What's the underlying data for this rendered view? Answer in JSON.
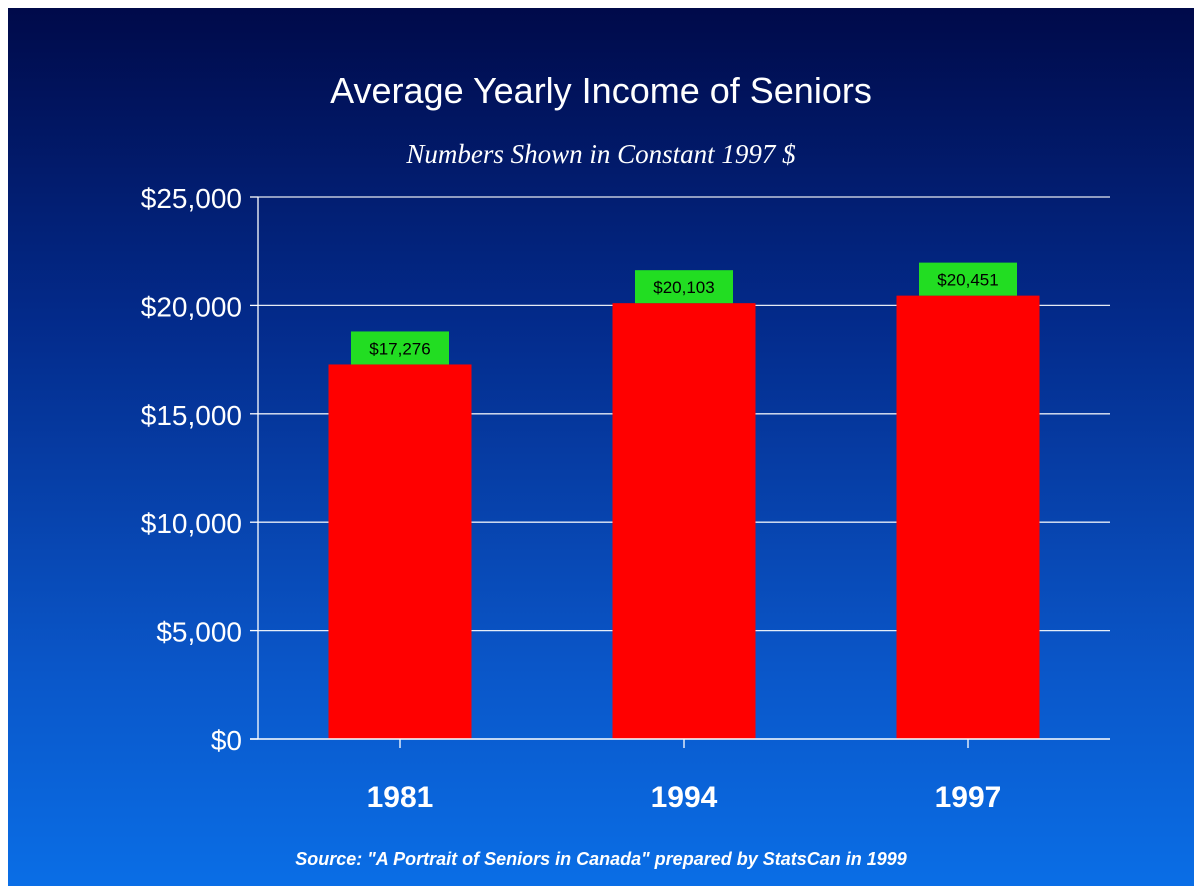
{
  "chart_data": {
    "type": "bar",
    "title": "Average Yearly Income of Seniors",
    "subtitle": "Numbers Shown in Constant 1997 $",
    "categories": [
      "1981",
      "1994",
      "1997"
    ],
    "values": [
      17276,
      20103,
      20451
    ],
    "data_labels": [
      "$17,276",
      "$20,103",
      "$20,451"
    ],
    "y_ticks": [
      {
        "value": 0,
        "label": "$0"
      },
      {
        "value": 5000,
        "label": "$5,000"
      },
      {
        "value": 10000,
        "label": "$10,000"
      },
      {
        "value": 15000,
        "label": "$15,000"
      },
      {
        "value": 20000,
        "label": "$20,000"
      },
      {
        "value": 25000,
        "label": "$25,000"
      }
    ],
    "ylim": [
      0,
      25000
    ],
    "grid": true,
    "xlabel": "",
    "ylabel": "",
    "colors": {
      "bar": "#ff0000",
      "label_bg": "#22dd22",
      "label_text": "#000000",
      "text": "#ffffff",
      "grid": "#ffffff"
    }
  },
  "source": "Source: \"A Portrait of Seniors in Canada\" prepared by StatsCan in 1999"
}
